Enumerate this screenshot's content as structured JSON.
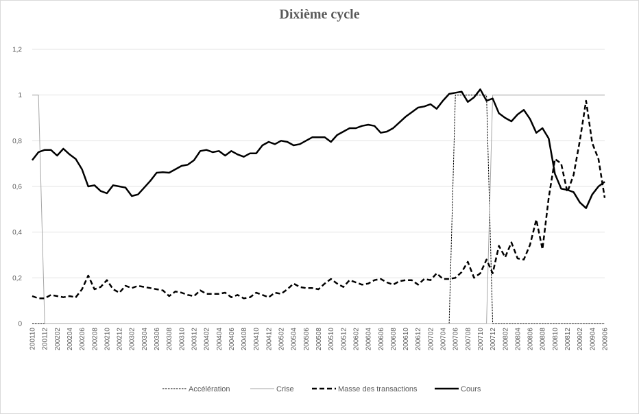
{
  "chart_data": {
    "type": "line",
    "title": "Dixième cycle",
    "ylim": [
      0,
      1.2
    ],
    "yticks": [
      "0",
      "0,2",
      "0,4",
      "0,6",
      "0,8",
      "1",
      "1,2"
    ],
    "x": [
      "200110",
      "200111",
      "200112",
      "200201",
      "200202",
      "200203",
      "200204",
      "200205",
      "200206",
      "200207",
      "200208",
      "200209",
      "200210",
      "200211",
      "200212",
      "200301",
      "200302",
      "200303",
      "200304",
      "200305",
      "200306",
      "200307",
      "200308",
      "200309",
      "200310",
      "200311",
      "200312",
      "200401",
      "200402",
      "200403",
      "200404",
      "200405",
      "200406",
      "200407",
      "200408",
      "200409",
      "200410",
      "200411",
      "200412",
      "200501",
      "200502",
      "200503",
      "200504",
      "200505",
      "200506",
      "200507",
      "200508",
      "200509",
      "200510",
      "200511",
      "200512",
      "200601",
      "200602",
      "200603",
      "200604",
      "200605",
      "200606",
      "200607",
      "200608",
      "200609",
      "200610",
      "200611",
      "200612",
      "200701",
      "200702",
      "200703",
      "200704",
      "200705",
      "200706",
      "200707",
      "200708",
      "200709",
      "200710",
      "200711",
      "200712",
      "200801",
      "200802",
      "200803",
      "200804",
      "200805",
      "200806",
      "200807",
      "200808",
      "200809",
      "200810",
      "200811",
      "200812",
      "200901",
      "200902",
      "200903",
      "200904",
      "200905",
      "200906"
    ],
    "xtick_labels": [
      "200110",
      "200112",
      "200202",
      "200204",
      "200206",
      "200208",
      "200210",
      "200212",
      "200302",
      "200304",
      "200306",
      "200308",
      "200310",
      "200312",
      "200402",
      "200404",
      "200406",
      "200408",
      "200410",
      "200412",
      "200502",
      "200504",
      "200506",
      "200508",
      "200510",
      "200512",
      "200602",
      "200604",
      "200606",
      "200608",
      "200610",
      "200612",
      "200702",
      "200704",
      "200706",
      "200708",
      "200710",
      "200712",
      "200802",
      "200804",
      "200806",
      "200808",
      "200810",
      "200812",
      "200902",
      "200904",
      "200906"
    ],
    "series": [
      {
        "name": "Accélération",
        "color": "#000000",
        "style": "dotted-thin",
        "values": [
          0,
          0,
          0,
          0,
          0,
          0,
          0,
          0,
          0,
          0,
          0,
          0,
          0,
          0,
          0,
          0,
          0,
          0,
          0,
          0,
          0,
          0,
          0,
          0,
          0,
          0,
          0,
          0,
          0,
          0,
          0,
          0,
          0,
          0,
          0,
          0,
          0,
          0,
          0,
          0,
          0,
          0,
          0,
          0,
          0,
          0,
          0,
          0,
          0,
          0,
          0,
          0,
          0,
          0,
          0,
          0,
          0,
          0,
          0,
          0,
          0,
          0,
          0,
          0,
          0,
          0,
          0,
          0,
          1,
          1,
          1,
          1,
          1,
          1,
          0,
          0,
          0,
          0,
          0,
          0,
          0,
          0,
          0,
          0,
          0,
          0,
          0,
          0,
          0,
          0,
          0,
          0,
          0
        ]
      },
      {
        "name": "Crise",
        "color": "#a6a6a6",
        "style": "solid-thin",
        "values": [
          1,
          1,
          0,
          0,
          0,
          0,
          0,
          0,
          0,
          0,
          0,
          0,
          0,
          0,
          0,
          0,
          0,
          0,
          0,
          0,
          0,
          0,
          0,
          0,
          0,
          0,
          0,
          0,
          0,
          0,
          0,
          0,
          0,
          0,
          0,
          0,
          0,
          0,
          0,
          0,
          0,
          0,
          0,
          0,
          0,
          0,
          0,
          0,
          0,
          0,
          0,
          0,
          0,
          0,
          0,
          0,
          0,
          0,
          0,
          0,
          0,
          0,
          0,
          0,
          0,
          0,
          0,
          0,
          0,
          0,
          0,
          0,
          0,
          0,
          1,
          1,
          1,
          1,
          1,
          1,
          1,
          1,
          1,
          1,
          1,
          1,
          1,
          1,
          1,
          1,
          1,
          1,
          1
        ]
      },
      {
        "name": "Masse des transactions",
        "color": "#000000",
        "style": "dashed-thick",
        "values": [
          0.12,
          0.11,
          0.11,
          0.125,
          0.12,
          0.115,
          0.12,
          0.115,
          0.15,
          0.21,
          0.15,
          0.16,
          0.19,
          0.15,
          0.135,
          0.165,
          0.155,
          0.165,
          0.16,
          0.155,
          0.15,
          0.145,
          0.12,
          0.14,
          0.135,
          0.125,
          0.12,
          0.145,
          0.13,
          0.13,
          0.13,
          0.135,
          0.115,
          0.125,
          0.11,
          0.115,
          0.135,
          0.125,
          0.115,
          0.135,
          0.13,
          0.15,
          0.175,
          0.16,
          0.155,
          0.155,
          0.15,
          0.175,
          0.195,
          0.175,
          0.16,
          0.19,
          0.18,
          0.17,
          0.175,
          0.19,
          0.195,
          0.18,
          0.17,
          0.185,
          0.19,
          0.19,
          0.17,
          0.195,
          0.19,
          0.22,
          0.195,
          0.195,
          0.2,
          0.225,
          0.27,
          0.2,
          0.22,
          0.28,
          0.22,
          0.34,
          0.29,
          0.355,
          0.285,
          0.28,
          0.345,
          0.455,
          0.325,
          0.55,
          0.72,
          0.7,
          0.575,
          0.65,
          0.8,
          0.975,
          0.79,
          0.72,
          0.55
        ]
      },
      {
        "name": "Cours",
        "color": "#000000",
        "style": "solid-thick",
        "values": [
          0.715,
          0.75,
          0.76,
          0.76,
          0.735,
          0.765,
          0.74,
          0.72,
          0.675,
          0.6,
          0.605,
          0.58,
          0.57,
          0.605,
          0.6,
          0.595,
          0.558,
          0.565,
          0.595,
          0.625,
          0.66,
          0.662,
          0.66,
          0.675,
          0.69,
          0.695,
          0.715,
          0.755,
          0.76,
          0.75,
          0.755,
          0.735,
          0.755,
          0.74,
          0.73,
          0.745,
          0.745,
          0.78,
          0.795,
          0.785,
          0.8,
          0.795,
          0.78,
          0.785,
          0.8,
          0.815,
          0.815,
          0.815,
          0.795,
          0.825,
          0.84,
          0.855,
          0.855,
          0.865,
          0.87,
          0.865,
          0.835,
          0.84,
          0.855,
          0.88,
          0.905,
          0.925,
          0.945,
          0.95,
          0.96,
          0.94,
          0.975,
          1.005,
          1.01,
          1.015,
          0.97,
          0.99,
          1.025,
          0.975,
          0.985,
          0.92,
          0.9,
          0.885,
          0.915,
          0.935,
          0.895,
          0.835,
          0.855,
          0.81,
          0.655,
          0.59,
          0.585,
          0.575,
          0.53,
          0.505,
          0.565,
          0.6,
          0.62
        ]
      }
    ],
    "legend_position": "bottom",
    "grid": "horizontal"
  }
}
